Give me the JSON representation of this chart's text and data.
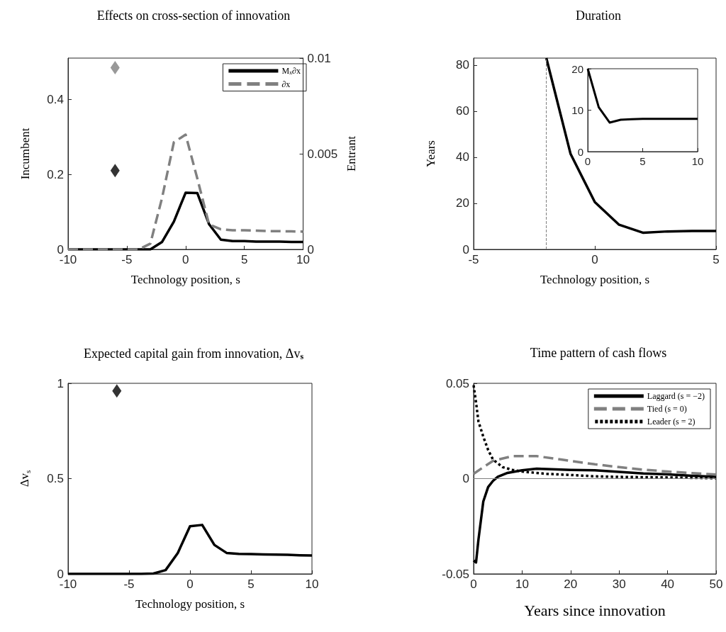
{
  "chart_data": [
    {
      "type": "line",
      "title": "Effects on cross-section of innovation",
      "xlabel": "Technology position, s",
      "ylabel": "Incumbent",
      "y2label": "Entrant",
      "x": [
        -10,
        -9,
        -8,
        -7,
        -6,
        -5,
        -4,
        -3,
        -2,
        -1,
        0,
        1,
        2,
        3,
        4,
        5,
        6,
        7,
        8,
        9,
        10
      ],
      "series": [
        {
          "name": "M$_{x}$∂x",
          "color": "#000000",
          "line_style": "solid",
          "marker": "none",
          "values": [
            0,
            0,
            0,
            0,
            0,
            0,
            0,
            0,
            0.02,
            0.074,
            0.151,
            0.15,
            0.067,
            0.026,
            0.022,
            0.022,
            0.021,
            0.021,
            0.021,
            0.02,
            0.02
          ]
        },
        {
          "name": "∂x",
          "color": "#808080",
          "line_style": "dashed",
          "marker": "none",
          "axis": "y2",
          "values": [
            0,
            0,
            0,
            0,
            0,
            0,
            0,
            0.0003,
            0.0027,
            0.0056,
            0.006,
            0.0037,
            0.0013,
            0.00105,
            0.001,
            0.001,
            0.00098,
            0.00096,
            0.00095,
            0.00094,
            0.00093
          ]
        },
        {
          "type": "scatter",
          "color": "#000000",
          "marker": "diamond",
          "x": [
            -6
          ],
          "values": [
            0.21
          ]
        },
        {
          "type": "scatter",
          "color": "#808080",
          "marker": "diamond",
          "axis": "y2",
          "x": [
            -6
          ],
          "values": [
            0.0095
          ]
        }
      ],
      "xlim": [
        -10,
        10
      ],
      "xticks": [
        -10,
        -5,
        0,
        5,
        10
      ],
      "ylim": [
        0,
        0.51
      ],
      "yticks": [
        0,
        0.2,
        0.4
      ],
      "y2lim": [
        0,
        0.01
      ],
      "y2ticks": [
        0,
        0.005,
        0.01
      ],
      "legend": "top right"
    },
    {
      "type": "line",
      "title": "Duration",
      "xlabel": "Technology position, s",
      "ylabel": "Years",
      "series": [
        {
          "color": "#000000",
          "line_style": "solid",
          "marker": "none",
          "x": [
            -2,
            -1,
            0,
            1,
            2,
            3,
            4,
            5
          ],
          "values": [
            83,
            41.4,
            20.5,
            10.7,
            7.2,
            7.8,
            8.0,
            8.0
          ]
        }
      ],
      "xlim": [
        -5,
        5
      ],
      "xticks": [
        -5,
        0,
        5
      ],
      "ylim": [
        0,
        83
      ],
      "yticks": [
        0,
        20,
        40,
        60,
        80
      ],
      "ref_lines": [
        {
          "axis": "x",
          "value": -2,
          "color": "#808080",
          "line_style": "dashed"
        }
      ]
    },
    {
      "type": "line",
      "x": [
        0,
        1,
        2,
        3,
        4,
        5,
        6,
        7,
        8,
        9,
        10
      ],
      "series": [
        {
          "color": "#000000",
          "line_style": "solid",
          "marker": "none",
          "values": [
            20,
            10.7,
            7.0,
            7.7,
            7.8,
            7.9,
            7.9,
            7.9,
            7.9,
            7.9,
            7.9
          ]
        }
      ],
      "xlim": [
        0,
        10
      ],
      "xticks": [
        0,
        5,
        10
      ],
      "ylim": [
        0,
        20
      ],
      "yticks": [
        0,
        10,
        20
      ]
    },
    {
      "type": "line",
      "title": "Expected capital gain from innovation, Δv$_{s}$",
      "xlabel": "Technology position, s",
      "ylabel": "Δv$_{s}$",
      "x": [
        -10,
        -9,
        -8,
        -7,
        -6,
        -5,
        -4,
        -3,
        -2,
        -1,
        0,
        1,
        2,
        3,
        4,
        5,
        6,
        7,
        8,
        9,
        10
      ],
      "series": [
        {
          "color": "#000000",
          "line_style": "solid",
          "marker": "none",
          "values": [
            0,
            0,
            0,
            0,
            0,
            0,
            0,
            0.002,
            0.02,
            0.11,
            0.25,
            0.257,
            0.152,
            0.11,
            0.105,
            0.104,
            0.102,
            0.101,
            0.1,
            0.098,
            0.097
          ]
        },
        {
          "type": "scatter",
          "color": "#000000",
          "marker": "diamond",
          "x": [
            -6
          ],
          "values": [
            0.96
          ]
        }
      ],
      "xlim": [
        -10,
        10
      ],
      "xticks": [
        -10,
        -5,
        0,
        5,
        10
      ],
      "ylim": [
        0,
        1
      ],
      "yticks": [
        0,
        0.5,
        1
      ]
    },
    {
      "type": "line",
      "title": "Time pattern of cash flows",
      "xlabel": "Years since innovation",
      "series": [
        {
          "name": "Laggard (s = −2)",
          "color": "#000000",
          "line_style": "solid",
          "marker": "none",
          "x": [
            0,
            0.5,
            1,
            2,
            3,
            4,
            5,
            7,
            10,
            13,
            15,
            20,
            25,
            30,
            35,
            40,
            45,
            50
          ],
          "values": [
            -0.043,
            -0.044,
            -0.032,
            -0.012,
            -0.0044,
            -0.0012,
            0.001,
            0.003,
            0.0044,
            0.0052,
            0.005,
            0.0046,
            0.0044,
            0.0035,
            0.0027,
            0.0022,
            0.0015,
            0.0009
          ]
        },
        {
          "name": "Tied (s = 0)",
          "color": "#808080",
          "line_style": "dashed",
          "marker": "none",
          "x": [
            0,
            2,
            4,
            8,
            13,
            18,
            25,
            30,
            35,
            40,
            45,
            50
          ],
          "values": [
            0.0025,
            0.006,
            0.0093,
            0.0118,
            0.0118,
            0.01,
            0.0075,
            0.006,
            0.0047,
            0.0037,
            0.0029,
            0.0021
          ]
        },
        {
          "name": "Leader (s = 2)",
          "color": "#000000",
          "line_style": "dotted",
          "marker": "none",
          "x": [
            0,
            0.5,
            1,
            2,
            3,
            4,
            6,
            8,
            10,
            15,
            20,
            25,
            30,
            40,
            50
          ],
          "values": [
            0.049,
            0.04,
            0.03,
            0.022,
            0.015,
            0.01,
            0.006,
            0.0046,
            0.0037,
            0.0025,
            0.0019,
            0.0012,
            0.0009,
            0.0006,
            0.0002
          ]
        }
      ],
      "xlim": [
        0,
        50
      ],
      "xticks": [
        0,
        10,
        20,
        30,
        40,
        50
      ],
      "ylim": [
        -0.05,
        0.05
      ],
      "yticks": [
        -0.05,
        0,
        0.05
      ],
      "legend": "top right",
      "ref_lines": [
        {
          "axis": "y",
          "value": 0,
          "color": "#808080",
          "line_style": "solid"
        }
      ]
    }
  ]
}
